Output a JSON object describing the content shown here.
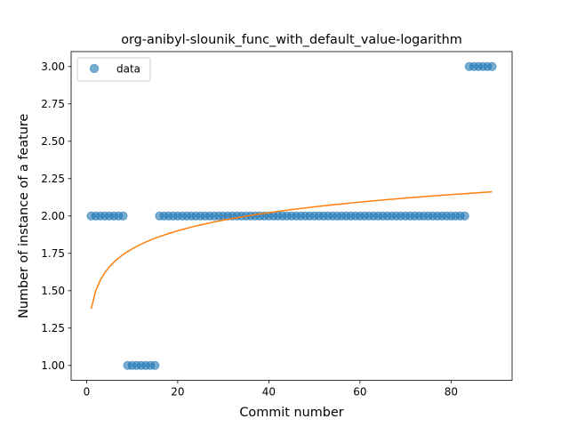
{
  "chart_data": {
    "type": "scatter",
    "title": "org-anibyl-slounik_func_with_default_value-logarithm",
    "xlabel": "Commit number",
    "ylabel": "Number of instance of a feature",
    "xlim": [
      -3.4,
      93.4
    ],
    "ylim": [
      0.9,
      3.1
    ],
    "xticks": [
      0,
      20,
      40,
      60,
      80
    ],
    "yticks": [
      1.0,
      1.25,
      1.5,
      1.75,
      2.0,
      2.25,
      2.5,
      2.75,
      3.0
    ],
    "ytick_labels": [
      "1.00",
      "1.25",
      "1.50",
      "1.75",
      "2.00",
      "2.25",
      "2.50",
      "2.75",
      "3.00"
    ],
    "grid": false,
    "legend": {
      "position": "top-left",
      "entries": [
        "data"
      ]
    },
    "colors": {
      "data": "#1f77b4",
      "fit": "#ff7f0e"
    },
    "series": [
      {
        "name": "data",
        "kind": "scatter",
        "x": [
          1,
          2,
          3,
          4,
          5,
          6,
          7,
          8,
          9,
          10,
          11,
          12,
          13,
          14,
          15,
          16,
          17,
          18,
          19,
          20,
          21,
          22,
          23,
          24,
          25,
          26,
          27,
          28,
          29,
          30,
          31,
          32,
          33,
          34,
          35,
          36,
          37,
          38,
          39,
          40,
          41,
          42,
          43,
          44,
          45,
          46,
          47,
          48,
          49,
          50,
          51,
          52,
          53,
          54,
          55,
          56,
          57,
          58,
          59,
          60,
          61,
          62,
          63,
          64,
          65,
          66,
          67,
          68,
          69,
          70,
          71,
          72,
          73,
          74,
          75,
          76,
          77,
          78,
          79,
          80,
          81,
          82,
          83,
          84,
          85,
          86,
          87,
          88,
          89
        ],
        "y": [
          2,
          2,
          2,
          2,
          2,
          2,
          2,
          2,
          1,
          1,
          1,
          1,
          1,
          1,
          1,
          2,
          2,
          2,
          2,
          2,
          2,
          2,
          2,
          2,
          2,
          2,
          2,
          2,
          2,
          2,
          2,
          2,
          2,
          2,
          2,
          2,
          2,
          2,
          2,
          2,
          2,
          2,
          2,
          2,
          2,
          2,
          2,
          2,
          2,
          2,
          2,
          2,
          2,
          2,
          2,
          2,
          2,
          2,
          2,
          2,
          2,
          2,
          2,
          2,
          2,
          2,
          2,
          2,
          2,
          2,
          2,
          2,
          2,
          2,
          2,
          2,
          2,
          2,
          2,
          2,
          2,
          2,
          2,
          3,
          3,
          3,
          3,
          3,
          3
        ]
      },
      {
        "kind": "line",
        "model": "logarithm",
        "x_range": [
          1,
          89
        ],
        "a": 0.1745,
        "b": 1.3784
      }
    ]
  }
}
